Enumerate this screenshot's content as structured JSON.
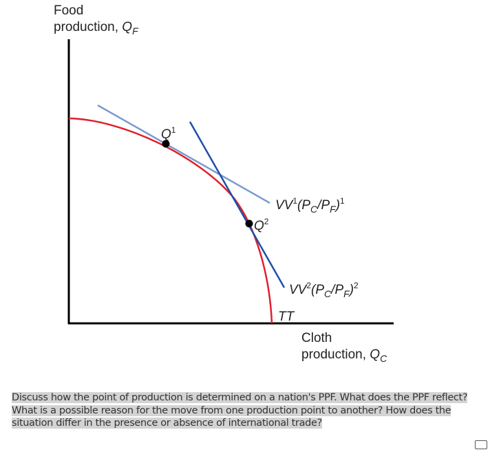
{
  "diagram": {
    "y_axis_label": {
      "line1": "Food",
      "line2": "production, ",
      "symbol": "Q",
      "sub": "F"
    },
    "x_axis_label": {
      "line1": "Cloth",
      "line2": "production, ",
      "symbol": "Q",
      "sub": "C"
    },
    "points": [
      {
        "symbol": "Q",
        "sup": "1"
      },
      {
        "symbol": "Q",
        "sup": "2"
      }
    ],
    "price_lines": [
      {
        "name": "VV",
        "name_sup": "1",
        "open": "(P",
        "sub1": "C",
        "mid": "/P",
        "sub2": "F",
        "close": ")",
        "sup": "1"
      },
      {
        "name": "VV",
        "name_sup": "2",
        "open": "(P",
        "sub1": "C",
        "mid": "/P",
        "sub2": "F",
        "close": ")",
        "sup": "2"
      }
    ],
    "curve_label": "TT"
  },
  "question": {
    "lines": [
      "Discuss how the point of production is determined on a nation's PPF. What does the PPF reflect?",
      "What is a possible reason for the move from one production point to another? How does the",
      "situation differ in the presence or absence of international trade?"
    ]
  }
}
